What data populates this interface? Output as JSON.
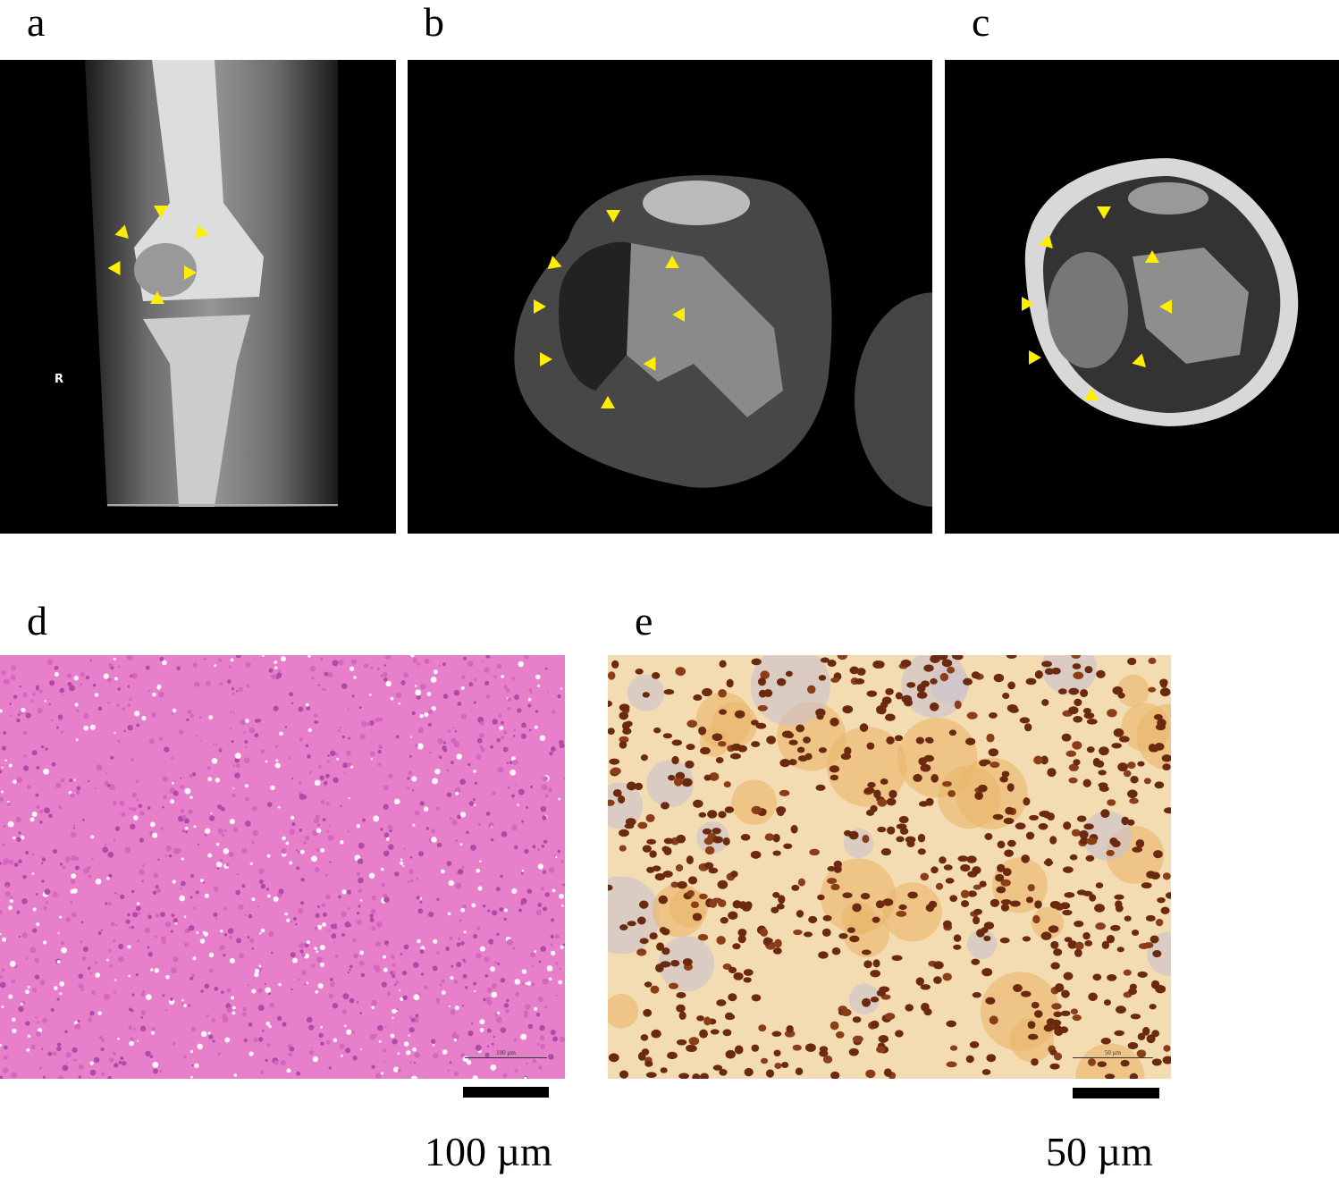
{
  "panels": {
    "a": {
      "label": "a",
      "marker": "R"
    },
    "b": {
      "label": "b"
    },
    "c": {
      "label": "c"
    },
    "d": {
      "label": "d",
      "scale_bar": "100 µm",
      "embedded_scale": "100 µm"
    },
    "e": {
      "label": "e",
      "scale_bar": "50 µm",
      "embedded_scale": "50 µm"
    }
  },
  "colors": {
    "arrowhead": "#ffee00",
    "he_stain": "#e77fcb",
    "ihc_background": "#f4dcb2",
    "ihc_nuclei": "#6b2a10"
  }
}
